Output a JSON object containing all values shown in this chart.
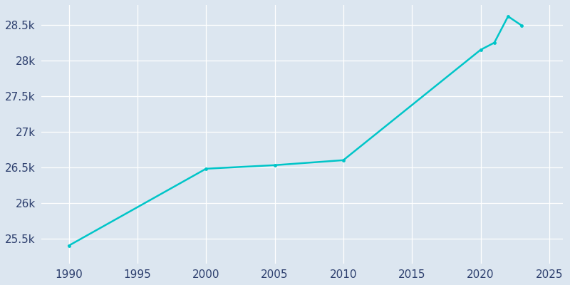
{
  "years": [
    1990,
    2000,
    2005,
    2010,
    2020,
    2021,
    2022,
    2023
  ],
  "population": [
    25400,
    26480,
    26530,
    26600,
    28150,
    28250,
    28620,
    28490
  ],
  "line_color": "#00c5c8",
  "marker_color": "#00c5c8",
  "bg_color": "#dce6f0",
  "grid_color": "#c8d4e3",
  "text_color": "#2d3f6e",
  "xlim": [
    1988,
    2026
  ],
  "ylim": [
    25150,
    28780
  ],
  "xticks": [
    1990,
    1995,
    2000,
    2005,
    2010,
    2015,
    2020,
    2025
  ],
  "yticks": [
    25500,
    26000,
    26500,
    27000,
    27500,
    28000,
    28500
  ],
  "ytick_labels": [
    "25.5k",
    "26k",
    "26.5k",
    "27k",
    "27.5k",
    "28k",
    "28.5k"
  ]
}
